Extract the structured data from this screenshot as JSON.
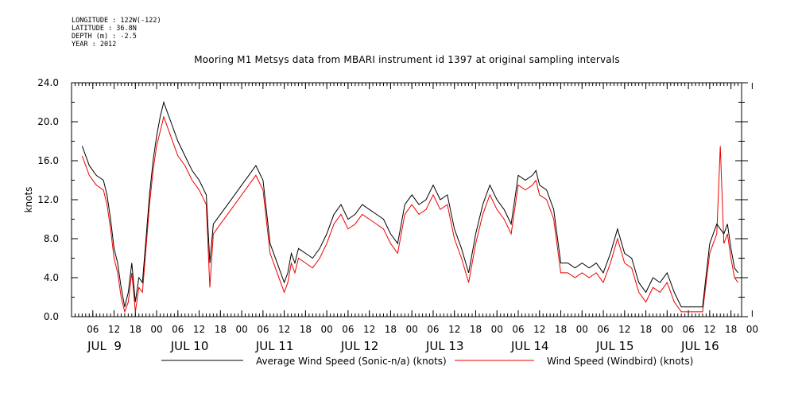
{
  "header": {
    "longitude": "LONGITUDE : 122W(-122)",
    "latitude": "LATITUDE : 36.8N",
    "depth": "DEPTH (m) : -2.5",
    "year": "YEAR : 2012"
  },
  "chart_data": {
    "type": "line",
    "title": "Mooring M1 Metsys data from MBARI instrument id 1397 at original sampling intervals",
    "ylabel": "knots",
    "xlabel": "",
    "ylim": [
      0,
      24
    ],
    "xlim_hours": [
      0,
      189
    ],
    "y_ticks": [
      "0.0",
      "4.0",
      "8.0",
      "12.0",
      "16.0",
      "20.0",
      "24.0"
    ],
    "x_hour_ticks": [
      "06",
      "12",
      "18",
      "00",
      "06",
      "12",
      "18",
      "00",
      "06",
      "12",
      "18",
      "00",
      "06",
      "12",
      "18",
      "00",
      "06",
      "12",
      "18",
      "00",
      "06",
      "12",
      "18",
      "00",
      "06",
      "12",
      "18",
      "00",
      "06",
      "12",
      "18",
      "00"
    ],
    "day_labels": [
      "JUL  9",
      "JUL 10",
      "JUL 11",
      "JUL 12",
      "JUL 13",
      "JUL 14",
      "JUL 15",
      "JUL 16"
    ],
    "legend_placement": "bottom",
    "x_units": "hours since 2012-07-09 00:00",
    "series": [
      {
        "name": "Average Wind Speed (Sonic-n/a) (knots)",
        "color": "#000000",
        "x": [
          3,
          5,
          7,
          9,
          10,
          11,
          12,
          13,
          14,
          15,
          16,
          17,
          18,
          19,
          20,
          21,
          22,
          23,
          24,
          25,
          26,
          27,
          28,
          30,
          32,
          34,
          36,
          38,
          39,
          40,
          42,
          44,
          46,
          48,
          50,
          52,
          54,
          56,
          58,
          60,
          61,
          62,
          63,
          64,
          66,
          68,
          70,
          72,
          74,
          76,
          78,
          80,
          82,
          84,
          86,
          88,
          90,
          92,
          94,
          96,
          98,
          100,
          102,
          104,
          106,
          108,
          110,
          112,
          114,
          116,
          118,
          120,
          122,
          124,
          126,
          128,
          130,
          131,
          132,
          134,
          136,
          138,
          140,
          142,
          144,
          146,
          148,
          150,
          152,
          154,
          156,
          158,
          160,
          162,
          164,
          166,
          168,
          170,
          172,
          174,
          176,
          178,
          180,
          181,
          182,
          183,
          184,
          185,
          186,
          187,
          188
        ],
        "y": [
          17.5,
          15.5,
          14.5,
          14.0,
          12.5,
          10.0,
          7.0,
          5.5,
          3.0,
          1.0,
          2.5,
          5.5,
          1.5,
          4.0,
          3.5,
          8.0,
          12.5,
          16.0,
          18.5,
          20.5,
          22.0,
          21.0,
          20.0,
          18.0,
          16.5,
          15.0,
          14.0,
          12.5,
          5.5,
          9.5,
          10.5,
          11.5,
          12.5,
          13.5,
          14.5,
          15.5,
          14.0,
          7.5,
          5.5,
          3.5,
          4.5,
          6.5,
          5.5,
          7.0,
          6.5,
          6.0,
          7.0,
          8.5,
          10.5,
          11.5,
          10.0,
          10.5,
          11.5,
          11.0,
          10.5,
          10.0,
          8.5,
          7.5,
          11.5,
          12.5,
          11.5,
          12.0,
          13.5,
          12.0,
          12.5,
          9.0,
          7.0,
          4.5,
          8.5,
          11.5,
          13.5,
          12.0,
          11.0,
          9.5,
          14.5,
          14.0,
          14.5,
          15.0,
          13.5,
          13.0,
          11.0,
          5.5,
          5.5,
          5.0,
          5.5,
          5.0,
          5.5,
          4.5,
          6.5,
          9.0,
          6.5,
          6.0,
          3.5,
          2.5,
          4.0,
          3.5,
          4.5,
          2.5,
          1.0,
          1.0,
          1.0,
          1.0,
          7.5,
          8.5,
          9.5,
          9.0,
          8.5,
          9.5,
          7.0,
          5.0,
          4.5
        ]
      },
      {
        "name": "Wind Speed (Windbird) (knots)",
        "color": "#ee0000",
        "x": [
          3,
          5,
          7,
          9,
          10,
          11,
          12,
          13,
          14,
          15,
          16,
          17,
          18,
          19,
          20,
          21,
          22,
          23,
          24,
          25,
          26,
          27,
          28,
          30,
          32,
          34,
          36,
          38,
          39,
          40,
          42,
          44,
          46,
          48,
          50,
          52,
          54,
          56,
          58,
          60,
          61,
          62,
          63,
          64,
          66,
          68,
          70,
          72,
          74,
          76,
          78,
          80,
          82,
          84,
          86,
          88,
          90,
          92,
          94,
          96,
          98,
          100,
          102,
          104,
          106,
          108,
          110,
          112,
          114,
          116,
          118,
          120,
          122,
          124,
          126,
          128,
          130,
          131,
          132,
          134,
          136,
          138,
          140,
          142,
          144,
          146,
          148,
          150,
          152,
          154,
          156,
          158,
          160,
          162,
          164,
          166,
          168,
          170,
          172,
          174,
          176,
          178,
          180,
          181,
          182,
          183,
          184,
          185,
          186,
          187,
          188
        ],
        "y": [
          16.5,
          14.5,
          13.5,
          13.0,
          11.5,
          9.0,
          6.0,
          4.5,
          2.0,
          0.5,
          1.5,
          4.5,
          0.5,
          3.0,
          2.5,
          7.0,
          11.5,
          15.0,
          17.5,
          19.0,
          20.5,
          19.5,
          18.5,
          16.5,
          15.5,
          14.0,
          13.0,
          11.5,
          3.0,
          8.5,
          9.5,
          10.5,
          11.5,
          12.5,
          13.5,
          14.5,
          13.0,
          6.5,
          4.5,
          2.5,
          3.5,
          5.5,
          4.5,
          6.0,
          5.5,
          5.0,
          6.0,
          7.5,
          9.5,
          10.5,
          9.0,
          9.5,
          10.5,
          10.0,
          9.5,
          9.0,
          7.5,
          6.5,
          10.5,
          11.5,
          10.5,
          11.0,
          12.5,
          11.0,
          11.5,
          8.0,
          6.0,
          3.5,
          7.5,
          10.5,
          12.5,
          11.0,
          10.0,
          8.5,
          13.5,
          13.0,
          13.5,
          14.0,
          12.5,
          12.0,
          10.0,
          4.5,
          4.5,
          4.0,
          4.5,
          4.0,
          4.5,
          3.5,
          5.5,
          8.0,
          5.5,
          5.0,
          2.5,
          1.5,
          3.0,
          2.5,
          3.5,
          1.5,
          0.5,
          0.5,
          0.5,
          0.5,
          6.5,
          7.5,
          8.5,
          17.5,
          7.5,
          8.5,
          6.0,
          4.0,
          3.5
        ]
      }
    ]
  },
  "legend": {
    "entries": [
      {
        "label": "Average Wind Speed (Sonic-n/a) (knots)",
        "color": "#000000"
      },
      {
        "label": "Wind Speed (Windbird) (knots)",
        "color": "#ee0000"
      }
    ]
  }
}
